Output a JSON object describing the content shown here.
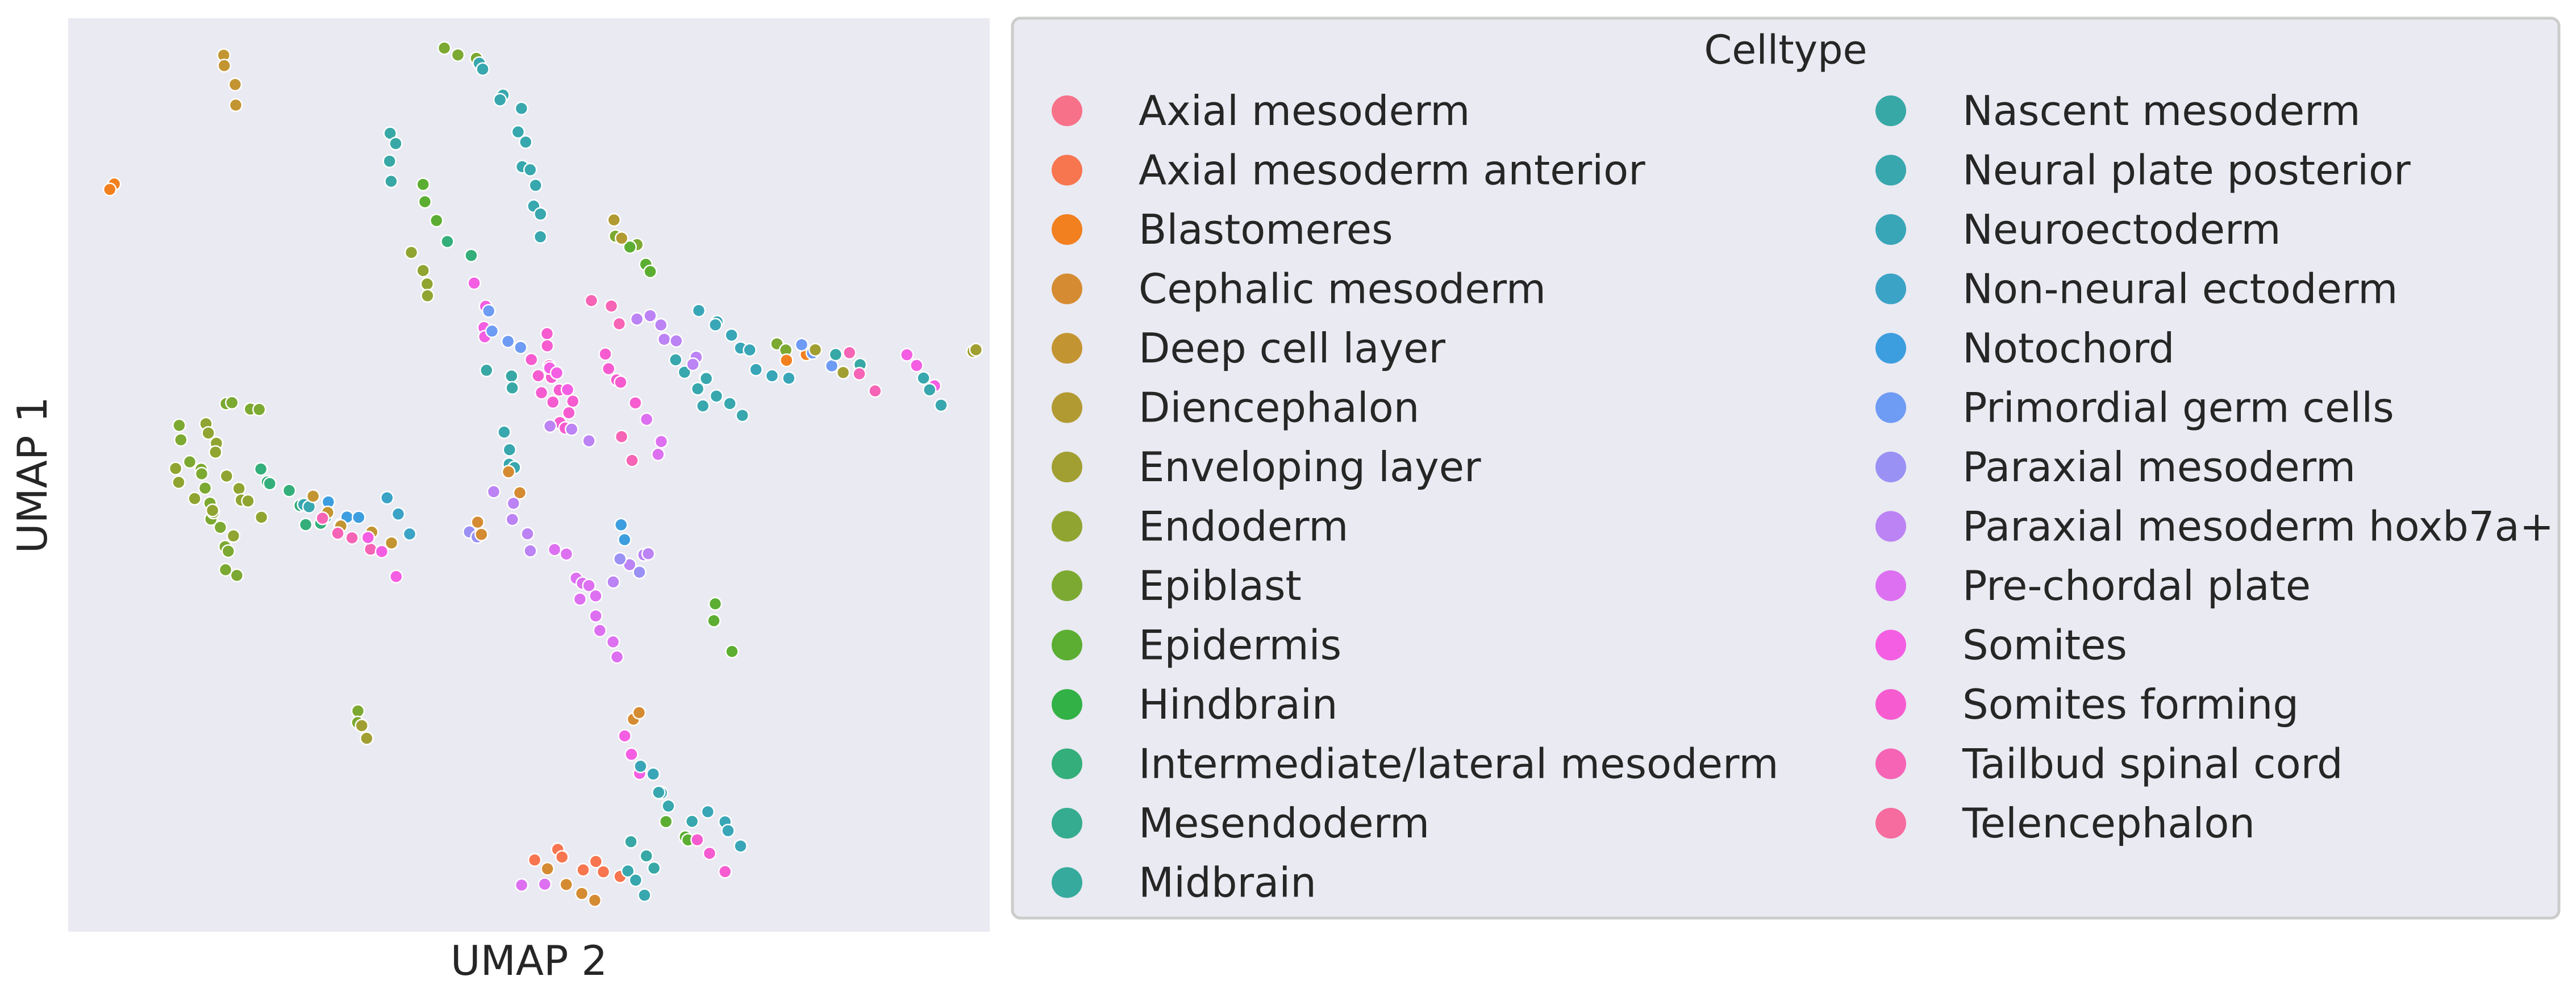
{
  "chart_data": {
    "type": "scatter",
    "xlabel": "UMAP 2",
    "ylabel": "UMAP 1",
    "grid": false,
    "legend_placement": "right",
    "legend_columns": 2,
    "legend": {
      "title": "Celltype",
      "items": [
        {
          "label": "Axial mesoderm",
          "color": "#f77189"
        },
        {
          "label": "Axial mesoderm anterior",
          "color": "#f7754f"
        },
        {
          "label": "Blastomeres",
          "color": "#f2801f"
        },
        {
          "label": "Cephalic mesoderm",
          "color": "#d58b32"
        },
        {
          "label": "Deep cell layer",
          "color": "#c39532"
        },
        {
          "label": "Diencephalon",
          "color": "#b29a32"
        },
        {
          "label": "Enveloping layer",
          "color": "#a19f32"
        },
        {
          "label": "Endoderm",
          "color": "#90a432"
        },
        {
          "label": "Epiblast",
          "color": "#7ca932"
        },
        {
          "label": "Epidermis",
          "color": "#5cae32"
        },
        {
          "label": "Hindbrain",
          "color": "#32b146"
        },
        {
          "label": "Intermediate/lateral mesoderm",
          "color": "#34ae7a"
        },
        {
          "label": "Mesendoderm",
          "color": "#35ac8f"
        },
        {
          "label": "Midbrain",
          "color": "#36aa9c"
        },
        {
          "label": "Nascent mesoderm",
          "color": "#37a8a5"
        },
        {
          "label": "Neural plate posterior",
          "color": "#38a7ae"
        },
        {
          "label": "Neuroectoderm",
          "color": "#39a6b8"
        },
        {
          "label": "Non-neural ectoderm",
          "color": "#3ba3c6"
        },
        {
          "label": "Notochord",
          "color": "#3d9edf"
        },
        {
          "label": "Primordial germ cells",
          "color": "#6e9bf4"
        },
        {
          "label": "Paraxial mesoderm",
          "color": "#9a91f4"
        },
        {
          "label": "Paraxial mesoderm hoxb7a+",
          "color": "#bb83f4"
        },
        {
          "label": "Pre-chordal plate",
          "color": "#dd70f1"
        },
        {
          "label": "Somites",
          "color": "#f45ee3"
        },
        {
          "label": "Somites forming",
          "color": "#f65cd0"
        },
        {
          "label": "Tailbud spinal cord",
          "color": "#f664b6"
        },
        {
          "label": "Telencephalon",
          "color": "#f66c9e"
        }
      ]
    },
    "clusters": [
      {
        "type": 4,
        "points": [
          [
            0.165,
            0.965
          ],
          [
            0.185,
            0.915
          ]
        ]
      },
      {
        "type": 2,
        "points": [
          [
            0.043,
            0.82
          ],
          [
            0.043,
            0.82
          ]
        ]
      },
      {
        "type": 8,
        "points": [
          [
            0.405,
            0.965
          ],
          [
            0.44,
            0.955
          ]
        ]
      },
      {
        "type": 15,
        "points": [
          [
            0.445,
            0.955
          ],
          [
            0.485,
            0.9
          ]
        ]
      },
      {
        "type": 15,
        "points": [
          [
            0.49,
            0.88
          ],
          [
            0.52,
            0.77
          ]
        ]
      },
      {
        "type": 8,
        "points": [
          [
            0.6,
            0.77
          ],
          [
            0.62,
            0.75
          ]
        ]
      },
      {
        "type": 9,
        "points": [
          [
            0.61,
            0.75
          ],
          [
            0.64,
            0.72
          ]
        ]
      },
      {
        "type": 5,
        "points": [
          [
            0.595,
            0.775
          ],
          [
            0.61,
            0.76
          ]
        ]
      },
      {
        "type": 14,
        "points": [
          [
            0.345,
            0.88
          ],
          [
            0.35,
            0.83
          ]
        ]
      },
      {
        "type": 9,
        "points": [
          [
            0.385,
            0.82
          ],
          [
            0.395,
            0.775
          ]
        ]
      },
      {
        "type": 7,
        "points": [
          [
            0.375,
            0.75
          ],
          [
            0.385,
            0.7
          ]
        ]
      },
      {
        "type": 11,
        "points": [
          [
            0.41,
            0.75
          ],
          [
            0.44,
            0.74
          ]
        ]
      },
      {
        "type": 23,
        "points": [
          [
            0.445,
            0.71
          ],
          [
            0.46,
            0.65
          ]
        ]
      },
      {
        "type": 19,
        "points": [
          [
            0.455,
            0.68
          ],
          [
            0.49,
            0.64
          ]
        ]
      },
      {
        "type": 14,
        "points": [
          [
            0.46,
            0.62
          ],
          [
            0.49,
            0.59
          ]
        ]
      },
      {
        "type": 15,
        "points": [
          [
            0.47,
            0.55
          ],
          [
            0.49,
            0.5
          ]
        ]
      },
      {
        "type": 3,
        "points": [
          [
            0.485,
            0.495
          ],
          [
            0.49,
            0.485
          ]
        ]
      },
      {
        "type": 24,
        "points": [
          [
            0.515,
            0.65
          ],
          [
            0.55,
            0.56
          ]
        ]
      },
      {
        "type": 15,
        "points": [
          [
            0.66,
            0.62
          ],
          [
            0.7,
            0.58
          ]
        ]
      },
      {
        "type": 6,
        "points": [
          [
            0.99,
            0.64
          ],
          [
            0.995,
            0.645
          ]
        ]
      },
      {
        "type": 23,
        "points": [
          [
            0.52,
            0.62
          ],
          [
            0.55,
            0.6
          ]
        ]
      },
      {
        "type": 24,
        "points": [
          [
            0.51,
            0.62
          ],
          [
            0.54,
            0.55
          ]
        ]
      },
      {
        "type": 21,
        "points": [
          [
            0.53,
            0.56
          ],
          [
            0.56,
            0.54
          ]
        ]
      },
      {
        "type": 25,
        "points": [
          [
            0.57,
            0.7
          ],
          [
            0.6,
            0.67
          ]
        ]
      },
      {
        "type": 24,
        "points": [
          [
            0.58,
            0.64
          ],
          [
            0.61,
            0.58
          ]
        ]
      },
      {
        "type": 25,
        "points": [
          [
            0.6,
            0.54
          ],
          [
            0.61,
            0.52
          ]
        ]
      },
      {
        "type": 22,
        "points": [
          [
            0.63,
            0.56
          ],
          [
            0.65,
            0.52
          ]
        ]
      },
      {
        "type": 21,
        "points": [
          [
            0.62,
            0.68
          ],
          [
            0.7,
            0.61
          ]
        ]
      },
      {
        "type": 15,
        "points": [
          [
            0.7,
            0.61
          ],
          [
            0.73,
            0.56
          ]
        ]
      },
      {
        "type": 16,
        "points": [
          [
            0.69,
            0.68
          ],
          [
            0.78,
            0.6
          ]
        ]
      },
      {
        "type": 8,
        "points": [
          [
            0.775,
            0.64
          ],
          [
            0.785,
            0.63
          ]
        ]
      },
      {
        "type": 2,
        "points": [
          [
            0.79,
            0.63
          ],
          [
            0.8,
            0.625
          ]
        ]
      },
      {
        "type": 19,
        "points": [
          [
            0.8,
            0.64
          ],
          [
            0.83,
            0.62
          ]
        ]
      },
      {
        "type": 6,
        "points": [
          [
            0.82,
            0.64
          ],
          [
            0.84,
            0.62
          ]
        ]
      },
      {
        "type": 14,
        "points": [
          [
            0.84,
            0.64
          ],
          [
            0.86,
            0.62
          ]
        ]
      },
      {
        "type": 25,
        "points": [
          [
            0.86,
            0.63
          ],
          [
            0.88,
            0.6
          ]
        ]
      },
      {
        "type": 23,
        "points": [
          [
            0.92,
            0.63
          ],
          [
            0.94,
            0.6
          ]
        ]
      },
      {
        "type": 15,
        "points": [
          [
            0.93,
            0.61
          ],
          [
            0.96,
            0.58
          ]
        ]
      },
      {
        "type": 8,
        "points": [
          [
            0.16,
            0.58
          ],
          [
            0.21,
            0.57
          ]
        ]
      },
      {
        "type": 7,
        "points": [
          [
            0.14,
            0.56
          ],
          [
            0.2,
            0.45
          ]
        ]
      },
      {
        "type": 8,
        "points": [
          [
            0.12,
            0.55
          ],
          [
            0.18,
            0.38
          ]
        ]
      },
      {
        "type": 7,
        "points": [
          [
            0.11,
            0.5
          ],
          [
            0.17,
            0.44
          ]
        ]
      },
      {
        "type": 11,
        "points": [
          [
            0.2,
            0.51
          ],
          [
            0.27,
            0.44
          ]
        ]
      },
      {
        "type": 15,
        "points": [
          [
            0.25,
            0.47
          ],
          [
            0.3,
            0.44
          ]
        ]
      },
      {
        "type": 18,
        "points": [
          [
            0.28,
            0.47
          ],
          [
            0.32,
            0.45
          ]
        ]
      },
      {
        "type": 4,
        "points": [
          [
            0.27,
            0.47
          ],
          [
            0.3,
            0.44
          ]
        ]
      },
      {
        "type": 25,
        "points": [
          [
            0.28,
            0.45
          ],
          [
            0.32,
            0.42
          ]
        ]
      },
      {
        "type": 4,
        "points": [
          [
            0.33,
            0.44
          ],
          [
            0.35,
            0.42
          ]
        ]
      },
      {
        "type": 17,
        "points": [
          [
            0.34,
            0.47
          ],
          [
            0.37,
            0.44
          ]
        ]
      },
      {
        "type": 23,
        "points": [
          [
            0.33,
            0.43
          ],
          [
            0.35,
            0.39
          ]
        ]
      },
      {
        "type": 20,
        "points": [
          [
            0.44,
            0.44
          ],
          [
            0.45,
            0.43
          ]
        ]
      },
      {
        "type": 3,
        "points": [
          [
            0.44,
            0.44
          ],
          [
            0.45,
            0.43
          ]
        ]
      },
      {
        "type": 21,
        "points": [
          [
            0.47,
            0.48
          ],
          [
            0.51,
            0.42
          ]
        ]
      },
      {
        "type": 22,
        "points": [
          [
            0.53,
            0.42
          ],
          [
            0.56,
            0.36
          ]
        ]
      },
      {
        "type": 22,
        "points": [
          [
            0.56,
            0.38
          ],
          [
            0.6,
            0.3
          ]
        ]
      },
      {
        "type": 21,
        "points": [
          [
            0.6,
            0.38
          ],
          [
            0.64,
            0.42
          ]
        ]
      },
      {
        "type": 18,
        "points": [
          [
            0.6,
            0.44
          ],
          [
            0.61,
            0.435
          ]
        ]
      },
      {
        "type": 20,
        "points": [
          [
            0.605,
            0.41
          ],
          [
            0.62,
            0.39
          ]
        ]
      },
      {
        "type": 9,
        "points": [
          [
            0.7,
            0.35
          ],
          [
            0.72,
            0.31
          ]
        ]
      },
      {
        "type": 8,
        "points": [
          [
            0.31,
            0.23
          ],
          [
            0.32,
            0.22
          ]
        ]
      },
      {
        "type": 6,
        "points": [
          [
            0.32,
            0.23
          ],
          [
            0.33,
            0.2
          ]
        ]
      },
      {
        "type": 3,
        "points": [
          [
            0.62,
            0.23
          ],
          [
            0.62,
            0.23
          ]
        ]
      },
      {
        "type": 23,
        "points": [
          [
            0.61,
            0.21
          ],
          [
            0.63,
            0.17
          ]
        ]
      },
      {
        "type": 16,
        "points": [
          [
            0.62,
            0.18
          ],
          [
            0.64,
            0.15
          ]
        ]
      },
      {
        "type": 15,
        "points": [
          [
            0.64,
            0.14
          ],
          [
            0.68,
            0.12
          ]
        ]
      },
      {
        "type": 9,
        "points": [
          [
            0.65,
            0.12
          ],
          [
            0.68,
            0.09
          ]
        ]
      },
      {
        "type": 14,
        "points": [
          [
            0.61,
            0.09
          ],
          [
            0.64,
            0.06
          ]
        ]
      },
      {
        "type": 1,
        "points": [
          [
            0.51,
            0.08
          ],
          [
            0.6,
            0.06
          ]
        ]
      },
      {
        "type": 3,
        "points": [
          [
            0.52,
            0.06
          ],
          [
            0.57,
            0.03
          ]
        ]
      },
      {
        "type": 22,
        "points": [
          [
            0.5,
            0.05
          ],
          [
            0.51,
            0.04
          ]
        ]
      },
      {
        "type": 15,
        "points": [
          [
            0.61,
            0.06
          ],
          [
            0.63,
            0.03
          ]
        ]
      },
      {
        "type": 24,
        "points": [
          [
            0.69,
            0.09
          ],
          [
            0.72,
            0.06
          ]
        ]
      },
      {
        "type": 16,
        "points": [
          [
            0.7,
            0.12
          ],
          [
            0.74,
            0.09
          ]
        ]
      }
    ]
  }
}
